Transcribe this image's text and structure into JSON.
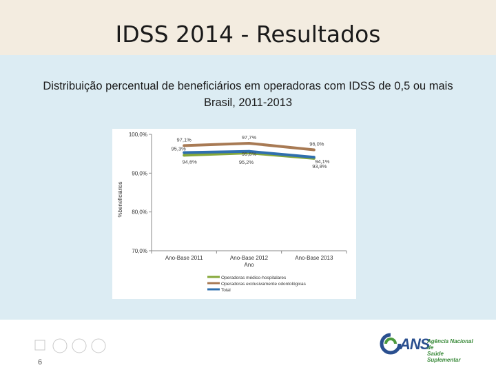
{
  "slide": {
    "title": "IDSS 2014 - Resultados",
    "subtitle_line1": "Distribuição percentual de beneficiários em operadoras com IDSS de 0,5 ou mais",
    "subtitle_line2": "Brasil, 2011-2013",
    "page_number": "6"
  },
  "logo": {
    "brand": "ANS",
    "tagline_line1": "Agência Nacional de",
    "tagline_line2": "Saúde Suplementar"
  },
  "colors": {
    "title_band": "#f3ece0",
    "content_band": "#dcecf3",
    "medico": "#86a83a",
    "odonto": "#a87a54",
    "total": "#2f6fae"
  },
  "chart_data": {
    "type": "line",
    "xlabel": "Ano",
    "ylabel": "%beneficiários",
    "ylim": [
      70,
      100
    ],
    "yticks": [
      "70,0%",
      "80,0%",
      "90,0%",
      "100,0%"
    ],
    "ytick_values": [
      70,
      80,
      90,
      100
    ],
    "categories": [
      "Ano-Base 2011",
      "Ano-Base 2012",
      "Ano-Base 2013"
    ],
    "series": [
      {
        "name": "Operadoras médico-hospitalares",
        "values": [
          94.6,
          95.2,
          93.8
        ],
        "labels": [
          "94,6%",
          "95,2%",
          "93,8%"
        ]
      },
      {
        "name": "Operadoras exclusivamente odontológicas",
        "values": [
          97.1,
          97.7,
          96.0
        ],
        "labels": [
          "97,1%",
          "97,7%",
          "96,0%"
        ]
      },
      {
        "name": "Total",
        "values": [
          95.3,
          95.6,
          94.1
        ],
        "labels": [
          "95,3%",
          "95,6%",
          "94,1%"
        ]
      }
    ],
    "legend": "bottom"
  }
}
